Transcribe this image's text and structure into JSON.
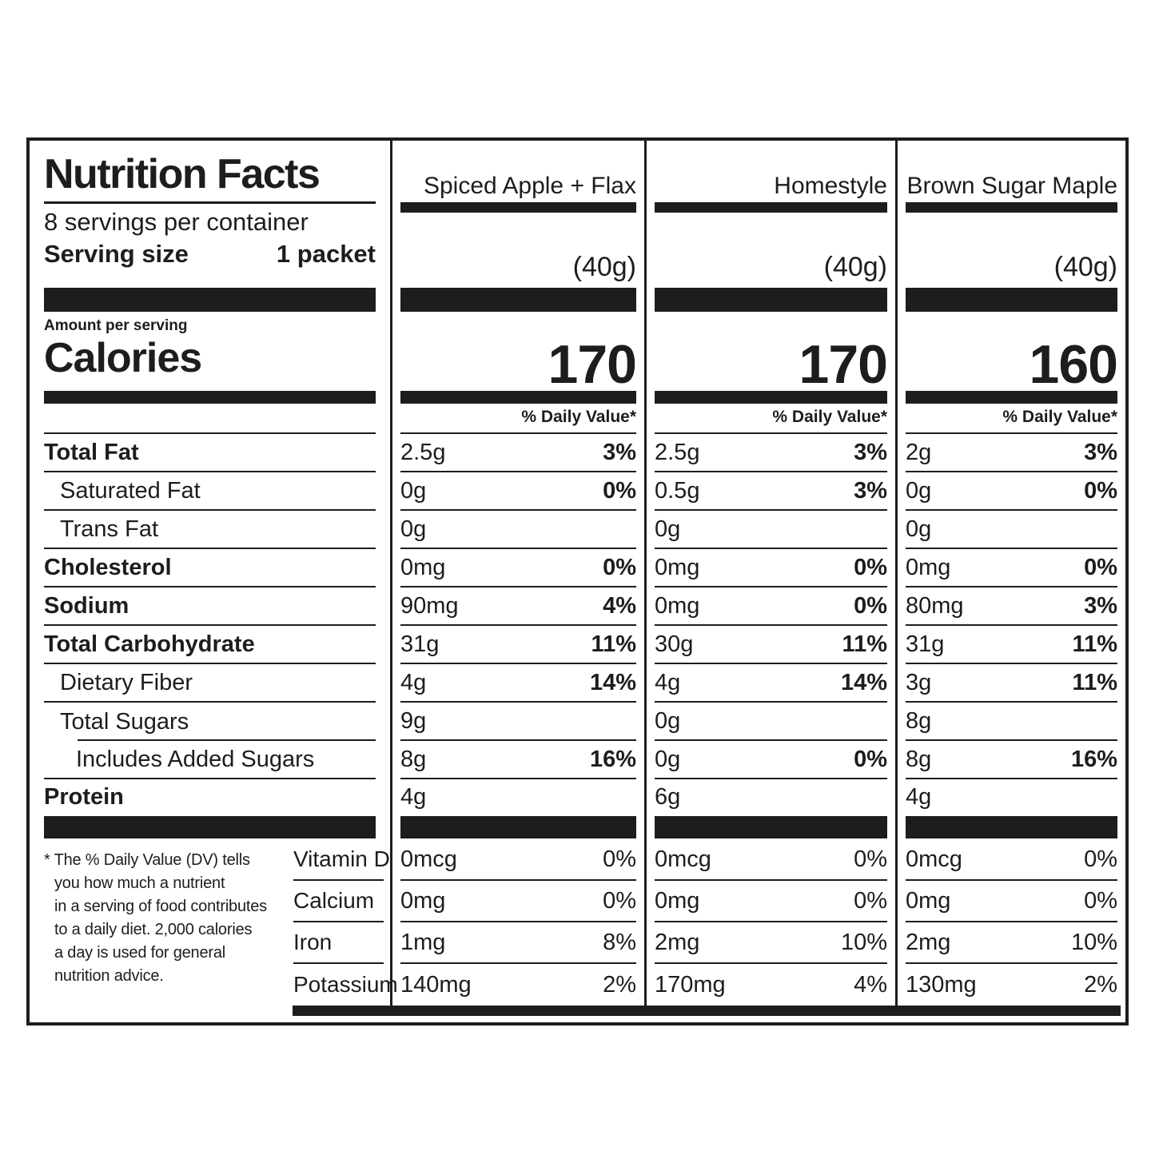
{
  "title": "Nutrition Facts",
  "servings_per_container": "8 servings per container",
  "serving_size_label": "Serving size",
  "serving_size_value": "1 packet",
  "amount_per_serving": "Amount per serving",
  "calories_label": "Calories",
  "daily_value_header": "% Daily Value*",
  "products": [
    {
      "name": "Spiced Apple + Flax",
      "weight": "(40g)",
      "calories": "170"
    },
    {
      "name": "Homestyle",
      "weight": "(40g)",
      "calories": "170"
    },
    {
      "name": "Brown Sugar Maple",
      "weight": "(40g)",
      "calories": "160"
    }
  ],
  "nutrients": [
    {
      "label": "Total Fat",
      "values": [
        {
          "amount": "2.5g",
          "dv": "3%"
        },
        {
          "amount": "2.5g",
          "dv": "3%"
        },
        {
          "amount": "2g",
          "dv": "3%"
        }
      ]
    },
    {
      "label": "Saturated Fat",
      "values": [
        {
          "amount": "0g",
          "dv": "0%"
        },
        {
          "amount": "0.5g",
          "dv": "3%"
        },
        {
          "amount": "0g",
          "dv": "0%"
        }
      ]
    },
    {
      "label": "Trans Fat",
      "values": [
        {
          "amount": "0g",
          "dv": ""
        },
        {
          "amount": "0g",
          "dv": ""
        },
        {
          "amount": "0g",
          "dv": ""
        }
      ]
    },
    {
      "label": "Cholesterol",
      "values": [
        {
          "amount": "0mg",
          "dv": "0%"
        },
        {
          "amount": "0mg",
          "dv": "0%"
        },
        {
          "amount": "0mg",
          "dv": "0%"
        }
      ]
    },
    {
      "label": "Sodium",
      "values": [
        {
          "amount": "90mg",
          "dv": "4%"
        },
        {
          "amount": "0mg",
          "dv": "0%"
        },
        {
          "amount": "80mg",
          "dv": "3%"
        }
      ]
    },
    {
      "label": "Total Carbohydrate",
      "values": [
        {
          "amount": "31g",
          "dv": "11%"
        },
        {
          "amount": "30g",
          "dv": "11%"
        },
        {
          "amount": "31g",
          "dv": "11%"
        }
      ]
    },
    {
      "label": "Dietary Fiber",
      "values": [
        {
          "amount": "4g",
          "dv": "14%"
        },
        {
          "amount": "4g",
          "dv": "14%"
        },
        {
          "amount": "3g",
          "dv": "11%"
        }
      ]
    },
    {
      "label": "Total Sugars",
      "values": [
        {
          "amount": "9g",
          "dv": ""
        },
        {
          "amount": "0g",
          "dv": ""
        },
        {
          "amount": "8g",
          "dv": ""
        }
      ]
    },
    {
      "label": "Includes Added Sugars",
      "values": [
        {
          "amount": "8g",
          "dv": "16%"
        },
        {
          "amount": "0g",
          "dv": "0%"
        },
        {
          "amount": "8g",
          "dv": "16%"
        }
      ]
    },
    {
      "label": "Protein",
      "values": [
        {
          "amount": "4g",
          "dv": ""
        },
        {
          "amount": "6g",
          "dv": ""
        },
        {
          "amount": "4g",
          "dv": ""
        }
      ]
    }
  ],
  "vitamins": [
    {
      "label": "Vitamin D",
      "values": [
        {
          "amount": "0mcg",
          "dv": "0%"
        },
        {
          "amount": "0mcg",
          "dv": "0%"
        },
        {
          "amount": "0mcg",
          "dv": "0%"
        }
      ]
    },
    {
      "label": "Calcium",
      "values": [
        {
          "amount": "0mg",
          "dv": "0%"
        },
        {
          "amount": "0mg",
          "dv": "0%"
        },
        {
          "amount": "0mg",
          "dv": "0%"
        }
      ]
    },
    {
      "label": "Iron",
      "values": [
        {
          "amount": "1mg",
          "dv": "8%"
        },
        {
          "amount": "2mg",
          "dv": "10%"
        },
        {
          "amount": "2mg",
          "dv": "10%"
        }
      ]
    },
    {
      "label": "Potassium",
      "values": [
        {
          "amount": "140mg",
          "dv": "2%"
        },
        {
          "amount": "170mg",
          "dv": "4%"
        },
        {
          "amount": "130mg",
          "dv": "2%"
        }
      ]
    }
  ],
  "footnote": "* The % Daily Value (DV) tells\nyou how much a nutrient\nin a serving of food contributes\nto a daily diet. 2,000 calories\na day is used for general\nnutrition advice."
}
